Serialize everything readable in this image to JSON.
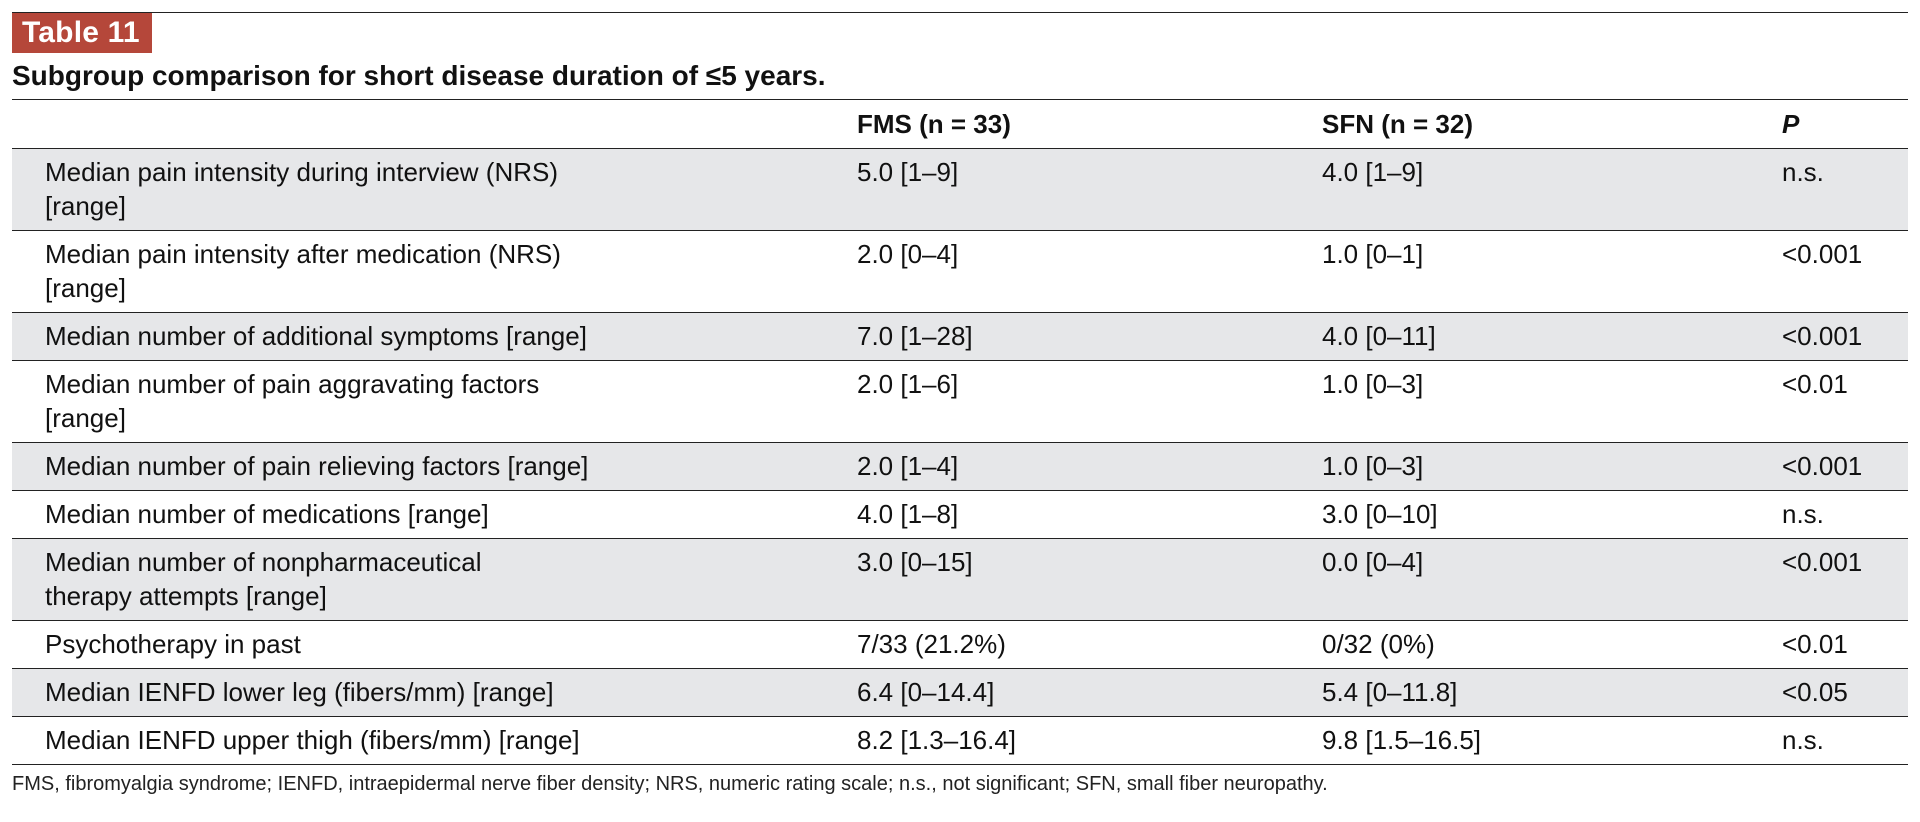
{
  "table": {
    "label": "Table 11",
    "caption": "Subgroup comparison for short disease duration of ≤5 years.",
    "headers": {
      "label": "",
      "fms": "FMS (n = 33)",
      "sfn": "SFN (n = 32)",
      "p": "P"
    },
    "rows": [
      {
        "label": "Median pain intensity during interview (NRS) [range]",
        "fms": "5.0 [1–9]",
        "sfn": "4.0 [1–9]",
        "p": "n.s."
      },
      {
        "label": "Median pain intensity after medication (NRS) [range]",
        "fms": "2.0 [0–4]",
        "sfn": "1.0 [0–1]",
        "p": "<0.001"
      },
      {
        "label": "Median number of additional symptoms [range]",
        "fms": "7.0 [1–28]",
        "sfn": "4.0 [0–11]",
        "p": "<0.001"
      },
      {
        "label": "Median number of pain aggravating factors [range]",
        "fms": "2.0 [1–6]",
        "sfn": "1.0 [0–3]",
        "p": "<0.01"
      },
      {
        "label": "Median number of pain relieving factors [range]",
        "fms": "2.0 [1–4]",
        "sfn": "1.0 [0–3]",
        "p": "<0.001"
      },
      {
        "label": "Median number of medications [range]",
        "fms": "4.0 [1–8]",
        "sfn": "3.0 [0–10]",
        "p": "n.s."
      },
      {
        "label": "Median number of nonpharmaceutical therapy attempts [range]",
        "fms": "3.0 [0–15]",
        "sfn": "0.0 [0–4]",
        "p": "<0.001"
      },
      {
        "label": "Psychotherapy in past",
        "fms": "7/33 (21.2%)",
        "sfn": "0/32 (0%)",
        "p": "<0.01"
      },
      {
        "label": "Median IENFD lower leg (fibers/mm) [range]",
        "fms": "6.4 [0–14.4]",
        "sfn": "5.4 [0–11.8]",
        "p": "<0.05"
      },
      {
        "label": "Median IENFD upper thigh (fibers/mm) [range]",
        "fms": "8.2 [1.3–16.4]",
        "sfn": "9.8 [1.5–16.5]",
        "p": "n.s."
      }
    ],
    "footnote": "FMS, fibromyalgia syndrome; IENFD, intraepidermal nerve fiber density; NRS, numeric rating scale; n.s., not significant; SFN, small fiber neuropathy."
  },
  "colors": {
    "label_bg": "#b5473a",
    "row_shade": "#e6e7e9"
  }
}
